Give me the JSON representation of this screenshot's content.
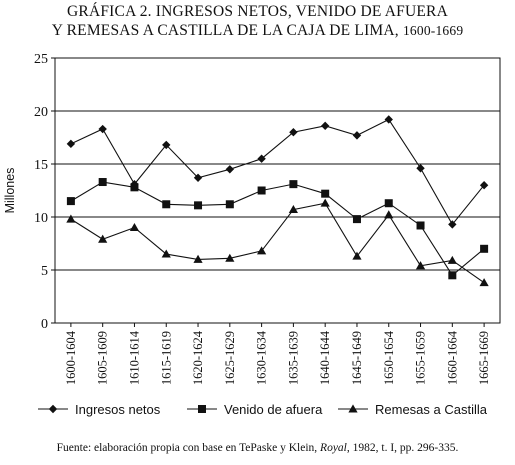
{
  "chart_data": {
    "type": "line",
    "title_line1": "GRÁFICA 2. INGRESOS NETOS, VENIDO DE AFUERA",
    "title_line2": "Y REMESAS A CASTILLA DE LA CAJA DE LIMA,",
    "title_years": "1600-1669",
    "ylabel": "Millones",
    "xlabel": "",
    "ylim": [
      0,
      25
    ],
    "yticks": [
      "0",
      "5",
      "10",
      "15",
      "20",
      "25"
    ],
    "grid": "horizontal",
    "legend_position": "bottom",
    "categories": [
      "1600-1604",
      "1605-1609",
      "1610-1614",
      "1615-1619",
      "1620-1624",
      "1625-1629",
      "1630-1634",
      "1635-1639",
      "1640-1644",
      "1645-1649",
      "1650-1654",
      "1655-1659",
      "1660-1664",
      "1665-1669"
    ],
    "series": [
      {
        "name": "Ingresos netos",
        "marker": "diamond",
        "values": [
          16.9,
          18.3,
          13.1,
          16.8,
          13.7,
          14.5,
          15.5,
          18.0,
          18.6,
          17.7,
          19.2,
          14.6,
          9.3,
          13.0
        ]
      },
      {
        "name": "Venido de afuera",
        "marker": "square",
        "values": [
          11.5,
          13.3,
          12.8,
          11.2,
          11.1,
          11.2,
          12.5,
          13.1,
          12.2,
          9.8,
          11.3,
          9.2,
          4.5,
          7.0
        ]
      },
      {
        "name": "Remesas a Castilla",
        "marker": "triangle",
        "values": [
          9.8,
          7.9,
          9.0,
          6.5,
          6.0,
          6.1,
          6.8,
          10.7,
          11.3,
          6.3,
          10.2,
          5.4,
          5.9,
          3.8
        ]
      }
    ]
  },
  "source": {
    "prefix": "Fuente: elaboración propia con base en TePaske y Klein, ",
    "italic": "Royal",
    "suffix": ", 1982, t. I, pp. 296-335."
  },
  "colors": {
    "line": "#111111",
    "grid": "#111111"
  }
}
